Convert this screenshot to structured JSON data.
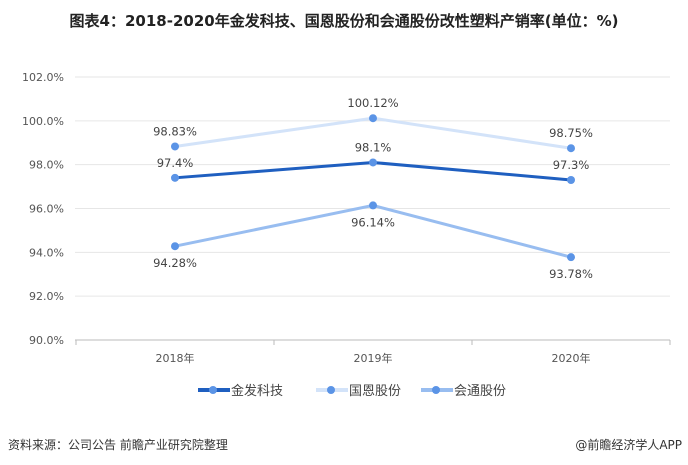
{
  "title": "图表4：2018-2020年金发科技、国恩股份和会通股份改性塑料产销率(单位：%)",
  "source": "资料来源：公司公告 前瞻产业研究院整理",
  "credit": "@前瞻经济学人APP",
  "chart_data": {
    "type": "line",
    "title": "图表4：2018-2020年金发科技、国恩股份和会通股份改性塑料产销率(单位：%)",
    "categories": [
      "2018年",
      "2019年",
      "2020年"
    ],
    "ylim": [
      90,
      102
    ],
    "yticks": [
      "90.0%",
      "92.0%",
      "94.0%",
      "96.0%",
      "98.0%",
      "100.0%",
      "102.0%"
    ],
    "grid": true,
    "legend": "bottom",
    "series": [
      {
        "name": "金发科技",
        "values": [
          97.4,
          98.1,
          97.3
        ],
        "labels": [
          "97.4%",
          "98.1%",
          "97.3%"
        ],
        "pos": [
          "above",
          "above",
          "above"
        ],
        "color": "#1f5fc0",
        "width": 3
      },
      {
        "name": "国恩股份",
        "values": [
          98.83,
          100.12,
          98.75
        ],
        "labels": [
          "98.83%",
          "100.12%",
          "98.75%"
        ],
        "pos": [
          "above",
          "above",
          "above"
        ],
        "color": "#d3e3f9",
        "width": 3
      },
      {
        "name": "会通股份",
        "values": [
          94.28,
          96.14,
          93.78
        ],
        "labels": [
          "94.28%",
          "96.14%",
          "93.78%"
        ],
        "pos": [
          "below",
          "below",
          "below"
        ],
        "color": "#98bdf0",
        "width": 3
      }
    ],
    "marker_color": "#5b94e6"
  }
}
